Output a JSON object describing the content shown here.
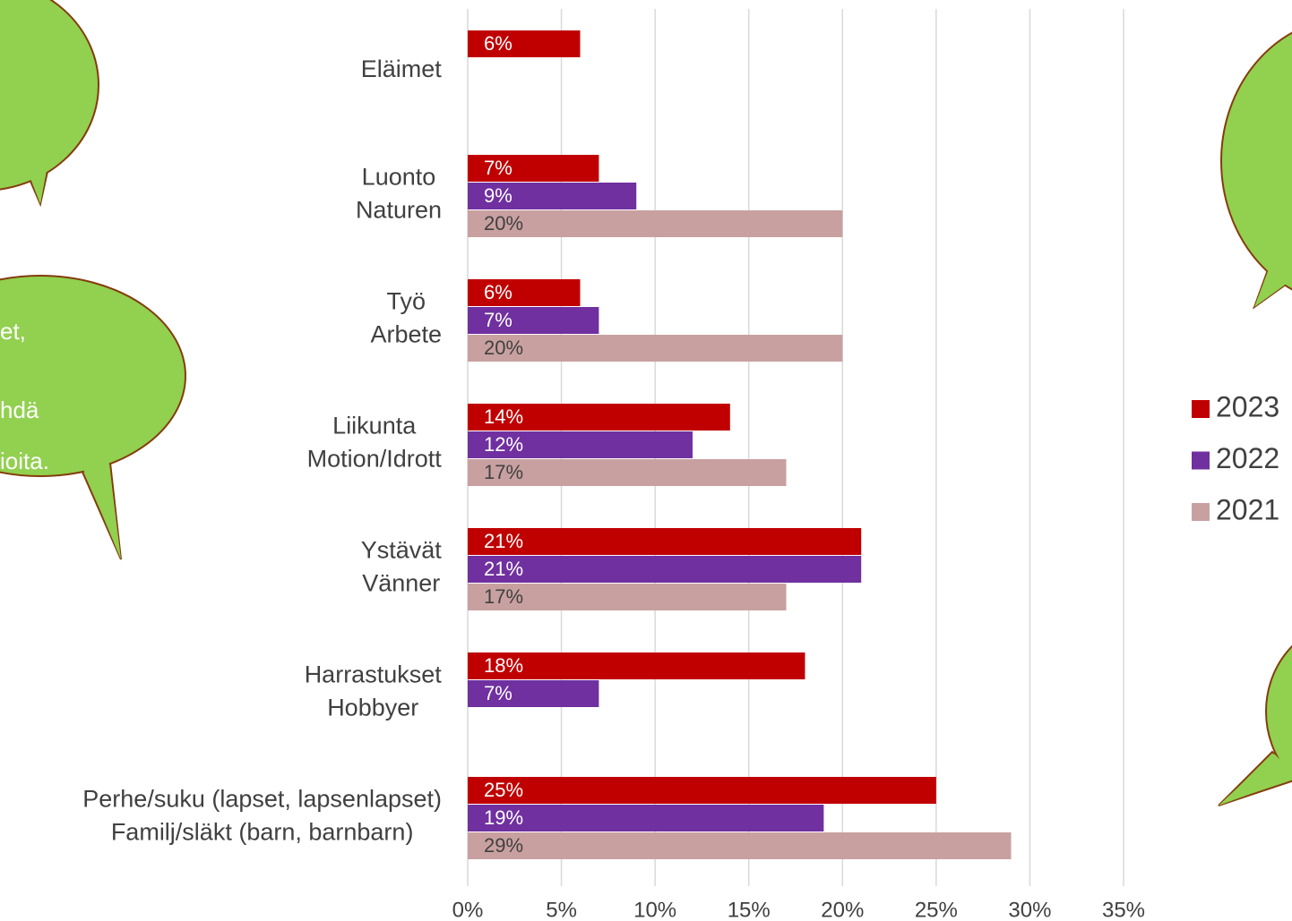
{
  "chart_data": {
    "type": "bar",
    "orientation": "horizontal",
    "categories": [
      [
        "Eläimet"
      ],
      [
        "Luonto",
        "Naturen"
      ],
      [
        "Työ",
        "Arbete"
      ],
      [
        "Liikunta",
        "Motion/Idrott"
      ],
      [
        "Ystävät",
        "Vänner"
      ],
      [
        "Harrastukset",
        "Hobbyer"
      ],
      [
        "Perhe/suku (lapset, lapsenlapset)",
        "Familj/släkt (barn, barnbarn)"
      ]
    ],
    "series": [
      {
        "name": "2023",
        "color": "#c00000",
        "values": [
          6,
          7,
          6,
          14,
          21,
          18,
          25
        ],
        "value_labels": [
          "6%",
          "7%",
          "6%",
          "14%",
          "21%",
          "18%",
          "25%"
        ]
      },
      {
        "name": "2022",
        "color": "#7030a0",
        "values": [
          null,
          9,
          7,
          12,
          21,
          7,
          19
        ],
        "value_labels": [
          null,
          "9%",
          "7%",
          "12%",
          "21%",
          "7%",
          "19%"
        ]
      },
      {
        "name": "2021",
        "color": "#c9a0a0",
        "values": [
          null,
          20,
          20,
          17,
          17,
          null,
          29
        ],
        "value_labels": [
          null,
          "20%",
          "20%",
          "17%",
          "17%",
          null,
          "29%"
        ]
      }
    ],
    "xlim": [
      0,
      35
    ],
    "xticks": [
      {
        "value": 0,
        "label": "0%"
      },
      {
        "value": 5,
        "label": "5%"
      },
      {
        "value": 10,
        "label": "10%"
      },
      {
        "value": 15,
        "label": "15%"
      },
      {
        "value": 20,
        "label": "20%"
      },
      {
        "value": 25,
        "label": "25%"
      },
      {
        "value": 30,
        "label": "30%"
      },
      {
        "value": 35,
        "label": "35%"
      }
    ],
    "grid": true,
    "legend": "right"
  },
  "bubbles": {
    "text_fragments": [
      "et,",
      "hdä",
      "ioita."
    ]
  }
}
